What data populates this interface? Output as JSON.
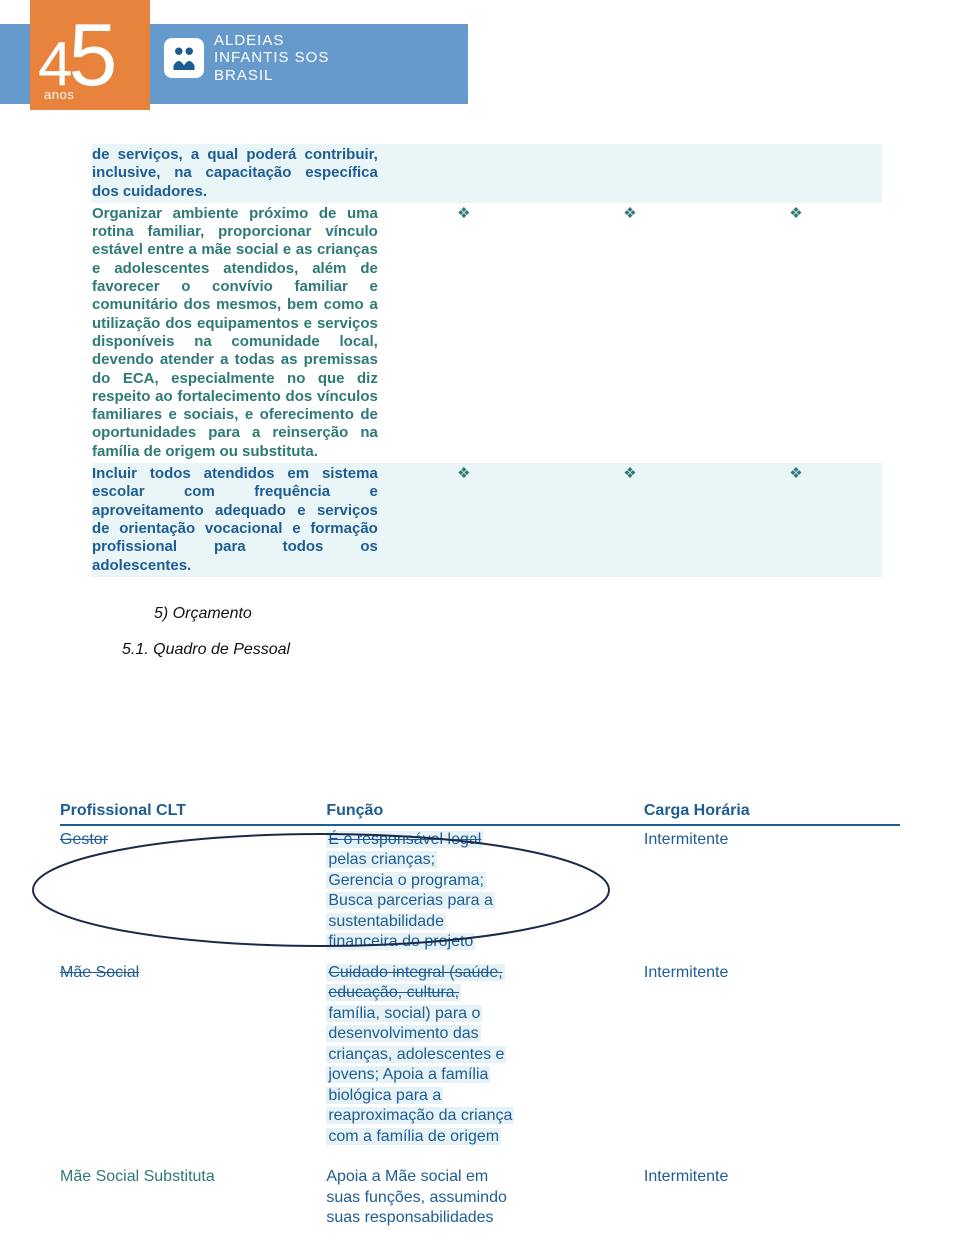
{
  "colors": {
    "header_band": "#6699cc",
    "logo_bg": "#e8833d",
    "text_blue": "#1d5d93",
    "text_teal": "#2e7a74",
    "row_alt_bg": "#eaf5f7",
    "highlight_bg": "#e6f2f5",
    "page_bg": "#ffffff"
  },
  "logo": {
    "four": "4",
    "five": "5",
    "anos": "anos"
  },
  "brand": {
    "line1": "ALDEIAS",
    "line2": "INFANTIS SOS",
    "line3": "BRASIL"
  },
  "diamond_glyph": "❖",
  "objectives": [
    {
      "style": "a",
      "text": "de serviços, a qual poderá contribuir, inclusive, na capacitação específica dos cuidadores.",
      "marks": [
        false,
        false,
        false
      ]
    },
    {
      "style": "b",
      "text": "Organizar ambiente próximo de uma rotina familiar, proporcionar vínculo estável entre a mãe social e as crianças e adolescentes atendidos, além de favorecer o convívio familiar e comunitário dos mesmos, bem como a utilização dos equipamentos e serviços disponíveis na comunidade local, devendo atender a todas as premissas do ECA, especialmente no que diz respeito ao fortalecimento dos vínculos familiares e sociais, e oferecimento de oportunidades para a reinserção na família de origem ou substituta.",
      "marks": [
        true,
        true,
        true
      ]
    },
    {
      "style": "a",
      "text": "Incluir todos atendidos em sistema escolar com frequência e aproveitamento adequado e serviços de orientação vocacional e formação profissional para todos os adolescentes.",
      "marks": [
        true,
        true,
        true
      ]
    }
  ],
  "section5": "5)  Orçamento",
  "section51": "5.1. Quadro de Pessoal",
  "staff": {
    "headers": {
      "profissional": "Profissional CLT",
      "funcao": "Função",
      "carga": "Carga Horária"
    },
    "rows": [
      {
        "prof": "Gestor",
        "prof_strike": true,
        "func_segments": [
          {
            "t": "É o responsável legal",
            "hl": true,
            "strike": true
          },
          {
            "br": true
          },
          {
            "t": "pelas crianças;",
            "hl": true
          },
          {
            "br": true
          },
          {
            "t": "Gerencia  o programa;",
            "hl": true
          },
          {
            "br": true
          },
          {
            "t": "Busca parcerias para a",
            "hl": true
          },
          {
            "br": true
          },
          {
            "t": "sustentabilidade",
            "hl": true
          },
          {
            "br": true
          },
          {
            "t": "financeira do projeto",
            "hl": true
          }
        ],
        "carga": "Intermitente"
      },
      {
        "prof": "Mãe Social",
        "prof_strike": true,
        "func_segments": [
          {
            "t": "Cuidado integral (saúde,",
            "hl": true,
            "strike": true
          },
          {
            "br": true
          },
          {
            "t": "educação, cultura,",
            "hl": true,
            "strike": true
          },
          {
            "br": true
          },
          {
            "t": "família, social) para o",
            "hl": true
          },
          {
            "br": true
          },
          {
            "t": "desenvolvimento das",
            "hl": true
          },
          {
            "br": true
          },
          {
            "t": "crianças, adolescentes e",
            "hl": true
          },
          {
            "br": true
          },
          {
            "t": "jovens; Apoia a família",
            "hl": true
          },
          {
            "br": true
          },
          {
            "t": "biológica para a",
            "hl": true
          },
          {
            "br": true
          },
          {
            "t": "reaproximação da criança",
            "hl": true
          },
          {
            "br": true
          },
          {
            "t": "com a família de origem",
            "hl": true
          }
        ],
        "carga": "Intermitente"
      },
      {
        "prof": "Mãe Social Substituta",
        "prof_strike": false,
        "last": true,
        "func_segments": [
          {
            "t": "Apoia a Mãe social em"
          },
          {
            "br": true
          },
          {
            "t": "suas funções, assumindo"
          },
          {
            "br": true
          },
          {
            "t": "suas responsabilidades"
          }
        ],
        "carga": "Intermitente"
      }
    ]
  },
  "ellipse": {
    "stroke": "#1a2a4a",
    "stroke_width": 2
  }
}
